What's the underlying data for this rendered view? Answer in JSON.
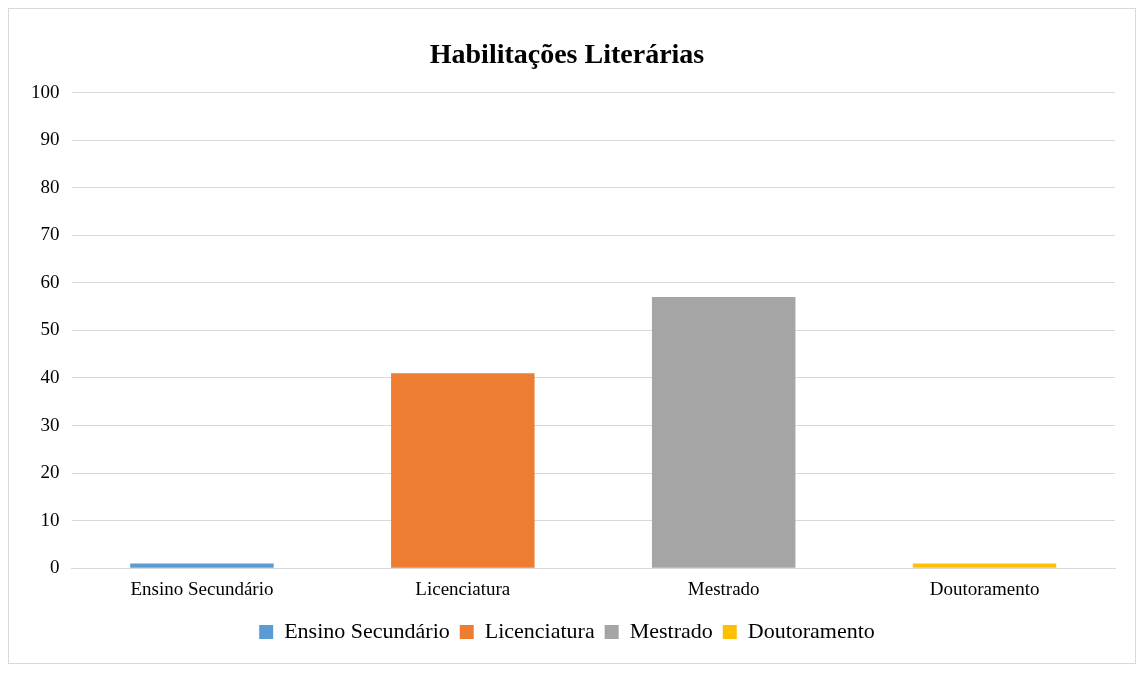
{
  "chart_data": {
    "type": "bar",
    "title": "Habilitações Literárias",
    "categories": [
      "Ensino Secundário",
      "Licenciatura",
      "Mestrado",
      "Doutoramento"
    ],
    "series": [
      {
        "name": "Ensino Secundário",
        "color": "#5b9bd5",
        "values": [
          1,
          null,
          null,
          null
        ]
      },
      {
        "name": "Licenciatura",
        "color": "#ed7d31",
        "values": [
          null,
          41,
          null,
          null
        ]
      },
      {
        "name": "Mestrado",
        "color": "#a5a5a5",
        "values": [
          null,
          null,
          57,
          null
        ]
      },
      {
        "name": "Doutoramento",
        "color": "#ffc000",
        "values": [
          null,
          null,
          null,
          1
        ]
      }
    ],
    "ylim": [
      0,
      100
    ],
    "yticks": [
      0,
      10,
      20,
      30,
      40,
      50,
      60,
      70,
      80,
      90,
      100
    ],
    "grid": "y",
    "legend": "bottom"
  }
}
